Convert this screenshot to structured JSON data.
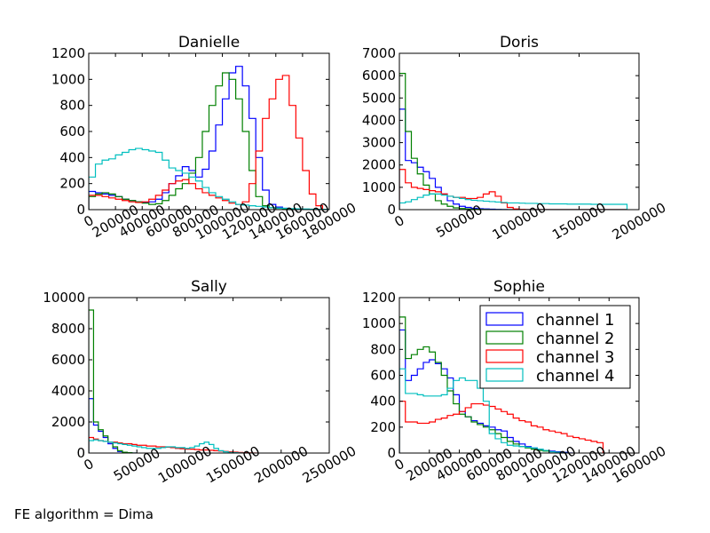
{
  "figure": {
    "footer_text": "FE algorithm = Dima"
  },
  "colors": {
    "channel 1": "#0000ff",
    "channel 2": "#008000",
    "channel 3": "#ff0000",
    "channel 4": "#00bfbf"
  },
  "chart_data": [
    {
      "type": "histogram-step",
      "title": "Danielle",
      "bin_width": 50000,
      "xlim": [
        0,
        1800000
      ],
      "ylim": [
        0,
        1200
      ],
      "xticks": [
        "0",
        "200000",
        "400000",
        "600000",
        "800000",
        "1000000",
        "1200000",
        "1400000",
        "1600000",
        "1800000"
      ],
      "yticks": [
        "0",
        "200",
        "400",
        "600",
        "800",
        "1000",
        "1200"
      ],
      "series": [
        {
          "name": "channel 1",
          "values": [
            140,
            130,
            120,
            110,
            100,
            80,
            70,
            60,
            55,
            60,
            80,
            130,
            200,
            260,
            330,
            300,
            250,
            310,
            450,
            650,
            850,
            1050,
            1100,
            950,
            700,
            400,
            150,
            40,
            20,
            10,
            5,
            3,
            2,
            1,
            0,
            0
          ]
        },
        {
          "name": "channel 2",
          "values": [
            100,
            120,
            130,
            120,
            100,
            80,
            70,
            60,
            50,
            40,
            45,
            70,
            110,
            160,
            200,
            280,
            400,
            600,
            800,
            950,
            1050,
            1000,
            850,
            600,
            300,
            100,
            30,
            15,
            10,
            5,
            3,
            2,
            1,
            0,
            0,
            0
          ]
        },
        {
          "name": "channel 3",
          "values": [
            110,
            110,
            100,
            90,
            80,
            70,
            60,
            55,
            60,
            80,
            110,
            150,
            200,
            220,
            230,
            200,
            160,
            130,
            110,
            90,
            70,
            50,
            40,
            60,
            200,
            450,
            700,
            850,
            1000,
            1030,
            800,
            550,
            300,
            120,
            30,
            0
          ]
        },
        {
          "name": "channel 4",
          "values": [
            250,
            350,
            380,
            390,
            420,
            440,
            460,
            470,
            460,
            450,
            440,
            380,
            320,
            300,
            280,
            250,
            220,
            170,
            130,
            100,
            80,
            60,
            40,
            35,
            30,
            25,
            20,
            15,
            12,
            10,
            8,
            6,
            5,
            4,
            3,
            2
          ]
        }
      ]
    },
    {
      "type": "histogram-step",
      "title": "Doris",
      "bin_width": 50000,
      "xlim": [
        0,
        2000000
      ],
      "ylim": [
        0,
        7000
      ],
      "xticks": [
        "0",
        "500000",
        "1000000",
        "1500000",
        "2000000"
      ],
      "yticks": [
        "0",
        "1000",
        "2000",
        "3000",
        "4000",
        "5000",
        "6000",
        "7000"
      ],
      "series": [
        {
          "name": "channel 1",
          "values": [
            4500,
            2200,
            2100,
            1900,
            1700,
            1400,
            1000,
            700,
            400,
            250,
            150,
            100,
            60,
            40,
            30,
            20,
            10,
            5,
            0,
            0,
            0,
            0,
            0,
            0,
            0,
            0,
            0,
            0,
            0,
            0,
            0,
            0,
            0,
            0,
            0,
            0,
            0,
            0
          ]
        },
        {
          "name": "channel 2",
          "values": [
            6100,
            3500,
            2300,
            1600,
            1100,
            700,
            400,
            250,
            150,
            80,
            50,
            30,
            20,
            10,
            5,
            0,
            0,
            0,
            0,
            0,
            0,
            0,
            0,
            0,
            0,
            0,
            0,
            0,
            0,
            0,
            0,
            0,
            0,
            0,
            0,
            0,
            0,
            0
          ]
        },
        {
          "name": "channel 3",
          "values": [
            1800,
            1200,
            1000,
            950,
            900,
            850,
            800,
            700,
            600,
            550,
            550,
            500,
            500,
            550,
            700,
            800,
            600,
            300,
            100,
            30,
            10,
            0,
            0,
            0,
            0,
            0,
            0,
            0,
            0,
            0,
            0,
            0,
            0,
            0,
            0,
            0,
            0,
            0
          ]
        },
        {
          "name": "channel 4",
          "values": [
            300,
            350,
            450,
            550,
            650,
            700,
            700,
            650,
            600,
            550,
            500,
            450,
            420,
            400,
            380,
            360,
            340,
            320,
            300,
            300,
            290,
            280,
            280,
            270,
            270,
            260,
            260,
            260,
            250,
            250,
            250,
            250,
            240,
            240,
            240,
            240,
            240,
            240
          ]
        }
      ]
    },
    {
      "type": "histogram-step",
      "title": "Sally",
      "bin_width": 50000,
      "xlim": [
        0,
        2500000
      ],
      "ylim": [
        0,
        10000
      ],
      "xticks": [
        "0",
        "500000",
        "1000000",
        "1500000",
        "2000000",
        "2500000"
      ],
      "yticks": [
        "0",
        "2000",
        "4000",
        "6000",
        "8000",
        "10000"
      ],
      "series": [
        {
          "name": "channel 1",
          "values": [
            3500,
            1800,
            1400,
            1000,
            600,
            300,
            100,
            30,
            10,
            0
          ]
        },
        {
          "name": "channel 2",
          "values": [
            9200,
            2000,
            1500,
            1100,
            700,
            400,
            150,
            50,
            20,
            0
          ]
        },
        {
          "name": "channel 3",
          "values": [
            1000,
            900,
            800,
            750,
            700,
            700,
            650,
            600,
            600,
            550,
            500,
            500,
            450,
            450,
            400,
            400,
            380,
            350,
            300,
            280,
            250,
            250,
            230,
            200,
            200,
            180,
            150,
            130,
            100,
            80,
            60,
            40,
            20,
            10,
            0
          ]
        },
        {
          "name": "channel 4",
          "values": [
            800,
            850,
            800,
            750,
            700,
            650,
            600,
            550,
            500,
            450,
            400,
            350,
            300,
            300,
            300,
            350,
            400,
            400,
            350,
            350,
            300,
            350,
            450,
            600,
            700,
            550,
            300,
            150,
            80,
            40,
            20,
            10,
            0
          ]
        }
      ]
    },
    {
      "type": "histogram-step",
      "title": "Sophie",
      "bin_width": 40000,
      "xlim": [
        0,
        1600000
      ],
      "ylim": [
        0,
        1200
      ],
      "xticks": [
        "0",
        "200000",
        "400000",
        "600000",
        "800000",
        "1000000",
        "1200000",
        "1400000",
        "1600000"
      ],
      "yticks": [
        "0",
        "200",
        "400",
        "600",
        "800",
        "1000",
        "1200"
      ],
      "legend": {
        "placement": "upper-right",
        "entries": [
          "channel 1",
          "channel 2",
          "channel 3",
          "channel 4"
        ]
      },
      "series": [
        {
          "name": "channel 1",
          "values": [
            950,
            560,
            600,
            650,
            700,
            720,
            690,
            650,
            580,
            450,
            320,
            280,
            250,
            230,
            210,
            200,
            180,
            170,
            120,
            90,
            70,
            50,
            40,
            30,
            20,
            15,
            10,
            5,
            0
          ]
        },
        {
          "name": "channel 2",
          "values": [
            1050,
            730,
            760,
            800,
            820,
            780,
            700,
            600,
            480,
            380,
            300,
            280,
            240,
            220,
            200,
            180,
            150,
            120,
            90,
            70,
            50,
            40,
            30,
            20,
            15,
            10,
            5,
            0
          ]
        },
        {
          "name": "channel 3",
          "values": [
            400,
            240,
            240,
            230,
            230,
            240,
            260,
            270,
            290,
            300,
            320,
            350,
            380,
            380,
            370,
            360,
            340,
            320,
            300,
            270,
            250,
            240,
            210,
            200,
            180,
            170,
            160,
            150,
            130,
            120,
            110,
            100,
            90,
            80
          ]
        },
        {
          "name": "channel 4",
          "values": [
            650,
            460,
            460,
            450,
            440,
            440,
            440,
            450,
            500,
            560,
            580,
            560,
            560,
            500,
            400,
            150,
            110,
            80,
            60,
            55,
            50,
            45,
            40,
            30,
            20,
            10,
            5,
            0
          ]
        }
      ]
    }
  ]
}
